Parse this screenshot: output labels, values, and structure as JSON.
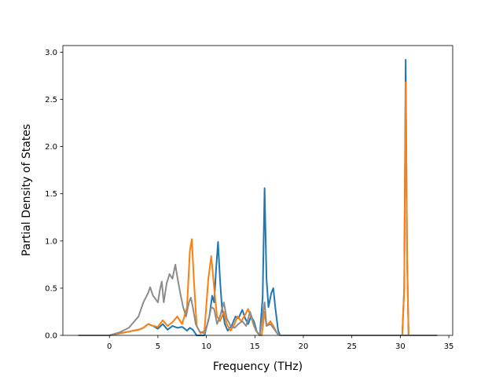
{
  "chart_data": {
    "type": "line",
    "title": "",
    "xlabel": "Frequency (THz)",
    "ylabel": "Partial Density of States",
    "xlim": [
      -4.8,
      35.4
    ],
    "ylim": [
      0,
      3.07
    ],
    "xticks": [
      0,
      5,
      10,
      15,
      20,
      25,
      30,
      35
    ],
    "yticks": [
      0.0,
      0.5,
      1.0,
      1.5,
      2.0,
      2.5,
      3.0
    ],
    "xtick_labels": [
      "0",
      "5",
      "10",
      "15",
      "20",
      "25",
      "30",
      "35"
    ],
    "ytick_labels": [
      "0.0",
      "0.5",
      "1.0",
      "1.5",
      "2.0",
      "2.5",
      "3.0"
    ],
    "grid": false,
    "legend": false,
    "series": [
      {
        "color": "#1f77b4",
        "points": [
          [
            -3.2,
            0
          ],
          [
            0,
            0
          ],
          [
            1,
            0.02
          ],
          [
            2,
            0.04
          ],
          [
            3,
            0.06
          ],
          [
            3.5,
            0.08
          ],
          [
            4,
            0.12
          ],
          [
            4.5,
            0.1
          ],
          [
            5,
            0.07
          ],
          [
            5.5,
            0.12
          ],
          [
            6,
            0.06
          ],
          [
            6.5,
            0.1
          ],
          [
            7,
            0.08
          ],
          [
            7.5,
            0.09
          ],
          [
            8,
            0.05
          ],
          [
            8.3,
            0.08
          ],
          [
            8.6,
            0.06
          ],
          [
            9,
            0.0
          ],
          [
            9.8,
            0.0
          ],
          [
            10.3,
            0.2
          ],
          [
            10.6,
            0.42
          ],
          [
            10.8,
            0.35
          ],
          [
            11.0,
            0.7
          ],
          [
            11.2,
            0.99
          ],
          [
            11.4,
            0.6
          ],
          [
            11.6,
            0.3
          ],
          [
            11.9,
            0.12
          ],
          [
            12.2,
            0.05
          ],
          [
            12.6,
            0.1
          ],
          [
            13.0,
            0.2
          ],
          [
            13.3,
            0.18
          ],
          [
            13.7,
            0.27
          ],
          [
            14.0,
            0.18
          ],
          [
            14.3,
            0.12
          ],
          [
            14.6,
            0.2
          ],
          [
            14.9,
            0.15
          ],
          [
            15.2,
            0.04
          ],
          [
            15.5,
            0.0
          ],
          [
            15.8,
            0.4
          ],
          [
            16.0,
            1.56
          ],
          [
            16.2,
            0.6
          ],
          [
            16.4,
            0.3
          ],
          [
            16.7,
            0.45
          ],
          [
            16.9,
            0.5
          ],
          [
            17.1,
            0.3
          ],
          [
            17.4,
            0.05
          ],
          [
            17.6,
            0.0
          ],
          [
            30.2,
            0.0
          ],
          [
            30.4,
            0.5
          ],
          [
            30.55,
            2.92
          ],
          [
            30.7,
            0.8
          ],
          [
            30.85,
            0.0
          ],
          [
            33.8,
            0.0
          ]
        ]
      },
      {
        "color": "#ff7f0e",
        "points": [
          [
            -3.2,
            0
          ],
          [
            0,
            0
          ],
          [
            1,
            0.02
          ],
          [
            2,
            0.04
          ],
          [
            3,
            0.06
          ],
          [
            3.5,
            0.08
          ],
          [
            4,
            0.12
          ],
          [
            4.5,
            0.1
          ],
          [
            5,
            0.09
          ],
          [
            5.5,
            0.16
          ],
          [
            6,
            0.1
          ],
          [
            6.5,
            0.14
          ],
          [
            7,
            0.2
          ],
          [
            7.5,
            0.12
          ],
          [
            8,
            0.3
          ],
          [
            8.3,
            0.9
          ],
          [
            8.5,
            1.02
          ],
          [
            8.7,
            0.6
          ],
          [
            9,
            0.1
          ],
          [
            9.4,
            0.02
          ],
          [
            9.8,
            0.05
          ],
          [
            10.2,
            0.6
          ],
          [
            10.5,
            0.84
          ],
          [
            10.8,
            0.5
          ],
          [
            11.1,
            0.2
          ],
          [
            11.4,
            0.15
          ],
          [
            11.8,
            0.25
          ],
          [
            12.1,
            0.12
          ],
          [
            12.5,
            0.05
          ],
          [
            12.9,
            0.12
          ],
          [
            13.2,
            0.2
          ],
          [
            13.6,
            0.15
          ],
          [
            14.0,
            0.22
          ],
          [
            14.3,
            0.28
          ],
          [
            14.6,
            0.2
          ],
          [
            14.9,
            0.1
          ],
          [
            15.3,
            0.02
          ],
          [
            15.7,
            0.0
          ],
          [
            16.0,
            0.25
          ],
          [
            16.2,
            0.1
          ],
          [
            16.6,
            0.15
          ],
          [
            16.9,
            0.1
          ],
          [
            17.3,
            0.02
          ],
          [
            17.6,
            0.0
          ],
          [
            30.2,
            0.0
          ],
          [
            30.4,
            0.5
          ],
          [
            30.55,
            2.68
          ],
          [
            30.7,
            0.8
          ],
          [
            30.85,
            0.0
          ],
          [
            33.8,
            0.0
          ]
        ]
      },
      {
        "color": "#8c8c8c",
        "points": [
          [
            -3.2,
            0
          ],
          [
            0,
            0
          ],
          [
            1,
            0.03
          ],
          [
            2,
            0.08
          ],
          [
            3,
            0.2
          ],
          [
            3.5,
            0.35
          ],
          [
            4,
            0.45
          ],
          [
            4.2,
            0.51
          ],
          [
            4.5,
            0.42
          ],
          [
            5,
            0.35
          ],
          [
            5.2,
            0.48
          ],
          [
            5.4,
            0.57
          ],
          [
            5.6,
            0.35
          ],
          [
            5.9,
            0.55
          ],
          [
            6.2,
            0.65
          ],
          [
            6.5,
            0.6
          ],
          [
            6.8,
            0.75
          ],
          [
            7.0,
            0.62
          ],
          [
            7.3,
            0.45
          ],
          [
            7.6,
            0.3
          ],
          [
            7.9,
            0.2
          ],
          [
            8.2,
            0.35
          ],
          [
            8.4,
            0.4
          ],
          [
            8.6,
            0.3
          ],
          [
            8.9,
            0.12
          ],
          [
            9.3,
            0.04
          ],
          [
            9.8,
            0.02
          ],
          [
            10.2,
            0.15
          ],
          [
            10.5,
            0.3
          ],
          [
            10.8,
            0.28
          ],
          [
            11.1,
            0.12
          ],
          [
            11.4,
            0.2
          ],
          [
            11.8,
            0.35
          ],
          [
            12.1,
            0.18
          ],
          [
            12.5,
            0.1
          ],
          [
            12.9,
            0.08
          ],
          [
            13.3,
            0.12
          ],
          [
            13.7,
            0.15
          ],
          [
            14.1,
            0.1
          ],
          [
            14.5,
            0.25
          ],
          [
            14.8,
            0.15
          ],
          [
            15.1,
            0.05
          ],
          [
            15.5,
            0.0
          ],
          [
            16.0,
            0.35
          ],
          [
            16.2,
            0.1
          ],
          [
            16.6,
            0.12
          ],
          [
            16.9,
            0.08
          ],
          [
            17.3,
            0.02
          ],
          [
            17.6,
            0.0
          ],
          [
            33.8,
            0.0
          ]
        ]
      }
    ]
  }
}
